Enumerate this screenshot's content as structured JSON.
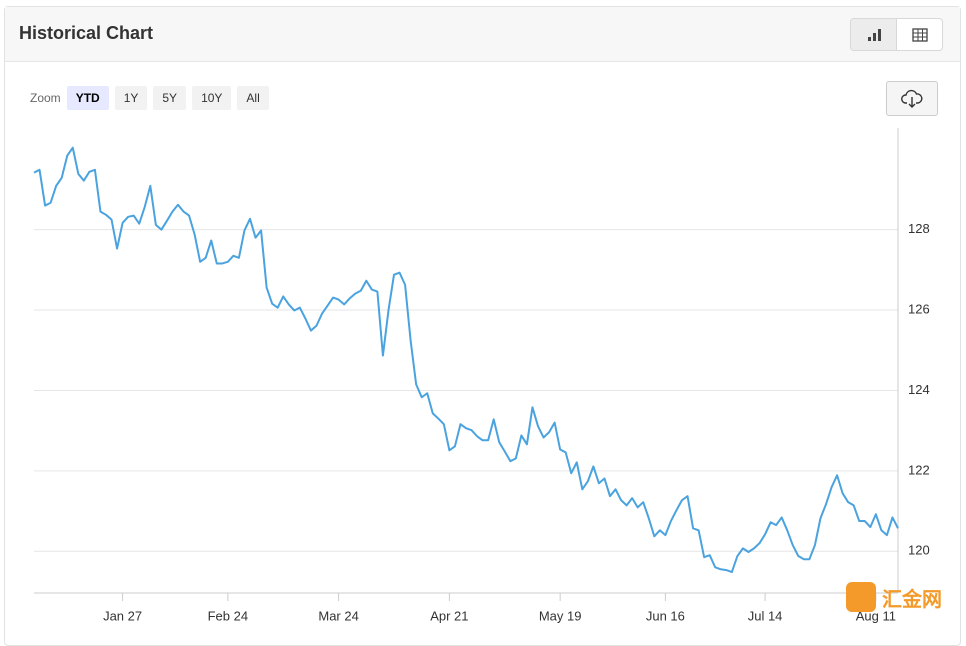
{
  "header": {
    "title": "Historical Chart"
  },
  "toolbar": {
    "zoom_label": "Zoom",
    "ranges": [
      "YTD",
      "1Y",
      "5Y",
      "10Y",
      "All"
    ],
    "selected": 0
  },
  "watermark": "汇金网",
  "chart_data": {
    "type": "line",
    "color": "#4aa3df",
    "grid": true,
    "ylim": [
      118.96,
      130.53
    ],
    "yticks": [
      120,
      122,
      124,
      126,
      128
    ],
    "categories": [
      null,
      null,
      null,
      null,
      null,
      null,
      null,
      null,
      null,
      null,
      null,
      null,
      null,
      null,
      null,
      null,
      "Jan 27",
      null,
      null,
      null,
      null,
      null,
      null,
      null,
      null,
      null,
      null,
      null,
      null,
      null,
      null,
      null,
      null,
      null,
      null,
      "Feb 24",
      null,
      null,
      null,
      null,
      null,
      null,
      null,
      null,
      null,
      null,
      null,
      null,
      null,
      null,
      null,
      null,
      null,
      null,
      null,
      "Mar 24",
      null,
      null,
      null,
      null,
      null,
      null,
      null,
      null,
      null,
      null,
      null,
      null,
      null,
      null,
      null,
      null,
      null,
      null,
      null,
      "Apr 21",
      null,
      null,
      null,
      null,
      null,
      null,
      null,
      null,
      null,
      null,
      null,
      null,
      null,
      null,
      null,
      null,
      null,
      null,
      null,
      "May 19",
      null,
      null,
      null,
      null,
      null,
      null,
      null,
      null,
      null,
      null,
      null,
      null,
      null,
      null,
      null,
      null,
      null,
      null,
      "Jun 16",
      null,
      null,
      null,
      null,
      null,
      null,
      null,
      null,
      null,
      null,
      null,
      null,
      null,
      null,
      null,
      null,
      null,
      "Jul 14",
      null,
      null,
      null,
      null,
      null,
      null,
      null,
      null,
      null,
      null,
      null,
      null,
      null,
      null,
      null,
      null,
      null,
      null,
      null,
      "Aug 11",
      null,
      null,
      null,
      null
    ],
    "values": [
      129.42,
      129.49,
      128.6,
      128.67,
      129.09,
      129.29,
      129.84,
      130.04,
      129.39,
      129.22,
      129.44,
      129.49,
      128.45,
      128.37,
      128.25,
      127.53,
      128.17,
      128.32,
      128.35,
      128.15,
      128.57,
      129.09,
      128.12,
      128.0,
      128.22,
      128.45,
      128.62,
      128.45,
      128.35,
      127.88,
      127.2,
      127.3,
      127.73,
      127.16,
      127.16,
      127.2,
      127.35,
      127.3,
      127.98,
      128.27,
      127.8,
      127.98,
      126.56,
      126.16,
      126.06,
      126.34,
      126.14,
      125.99,
      126.06,
      125.79,
      125.49,
      125.61,
      125.91,
      126.11,
      126.31,
      126.26,
      126.14,
      126.29,
      126.41,
      126.48,
      126.73,
      126.51,
      126.46,
      124.87,
      125.99,
      126.88,
      126.93,
      126.63,
      125.24,
      124.15,
      123.83,
      123.93,
      123.43,
      123.3,
      123.16,
      122.51,
      122.61,
      123.16,
      123.06,
      123.01,
      122.86,
      122.76,
      122.76,
      123.28,
      122.71,
      122.48,
      122.24,
      122.31,
      122.88,
      122.66,
      123.58,
      123.11,
      122.83,
      122.96,
      123.2,
      122.53,
      122.46,
      121.94,
      122.21,
      121.54,
      121.74,
      122.11,
      121.69,
      121.81,
      121.37,
      121.54,
      121.27,
      121.14,
      121.32,
      121.09,
      121.22,
      120.82,
      120.37,
      120.52,
      120.4,
      120.75,
      121.02,
      121.27,
      121.37,
      120.57,
      120.52,
      119.85,
      119.9,
      119.6,
      119.55,
      119.53,
      119.48,
      119.88,
      120.07,
      119.98,
      120.07,
      120.2,
      120.42,
      120.72,
      120.65,
      120.84,
      120.52,
      120.15,
      119.88,
      119.8,
      119.8,
      120.15,
      120.82,
      121.17,
      121.59,
      121.89,
      121.44,
      121.22,
      121.14,
      120.75,
      120.75,
      120.6,
      120.92,
      120.52,
      120.4,
      120.84,
      120.57
    ]
  }
}
